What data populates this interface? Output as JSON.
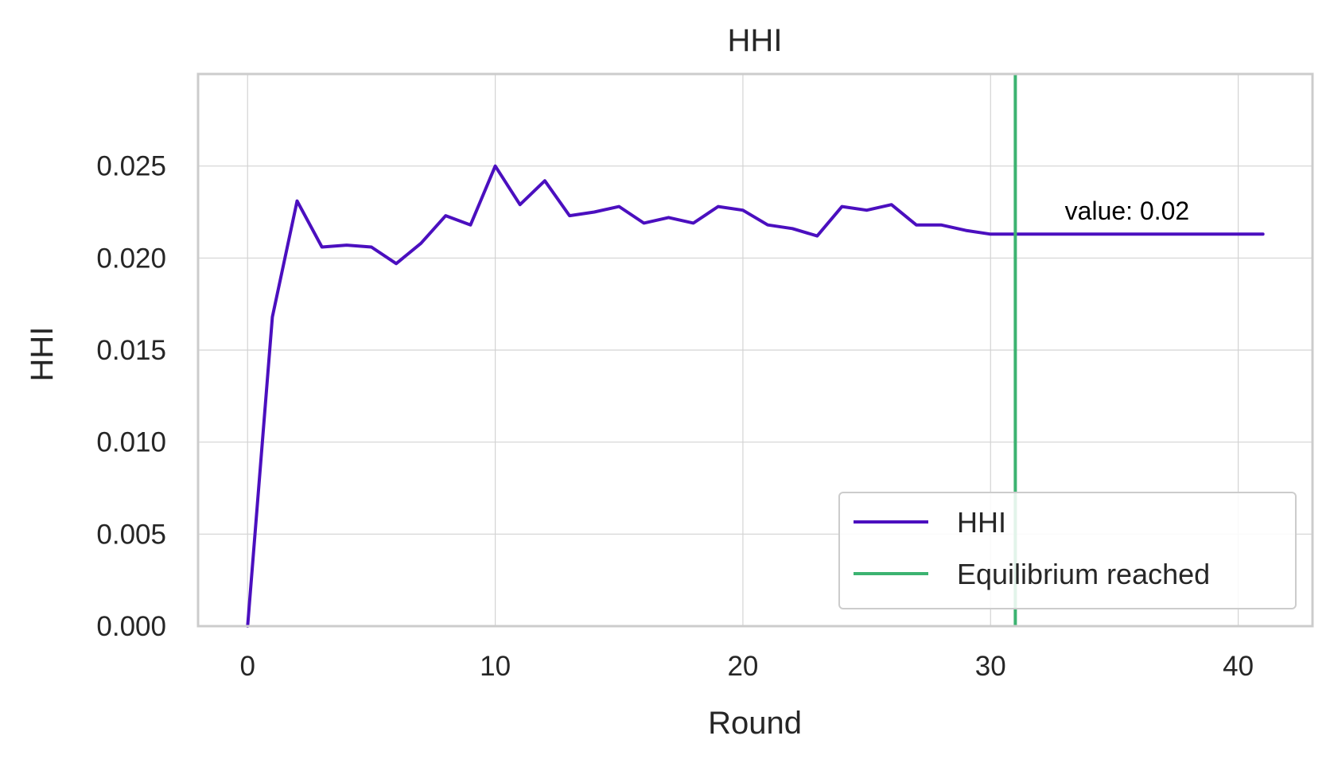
{
  "chart_data": {
    "type": "line",
    "title": "HHI",
    "xlabel": "Round",
    "ylabel": "HHI",
    "xlim": [
      -2,
      43
    ],
    "ylim": [
      0,
      0.03
    ],
    "xticks": [
      0,
      10,
      20,
      30,
      40
    ],
    "xtick_labels": [
      "0",
      "10",
      "20",
      "30",
      "40"
    ],
    "yticks": [
      0,
      0.005,
      0.01,
      0.015,
      0.02,
      0.025
    ],
    "ytick_labels": [
      "0.000",
      "0.005",
      "0.010",
      "0.015",
      "0.020",
      "0.025"
    ],
    "grid": true,
    "legend_position": "lower-right",
    "series": [
      {
        "name": "HHI",
        "color": "#4b0fbf",
        "x": [
          0,
          1,
          2,
          3,
          4,
          5,
          6,
          7,
          8,
          9,
          10,
          11,
          12,
          13,
          14,
          15,
          16,
          17,
          18,
          19,
          20,
          21,
          22,
          23,
          24,
          25,
          26,
          27,
          28,
          29,
          30,
          31,
          32,
          33,
          34,
          35,
          36,
          37,
          38,
          39,
          40,
          41
        ],
        "values": [
          0.0,
          0.0168,
          0.0231,
          0.0206,
          0.0207,
          0.0206,
          0.0197,
          0.0208,
          0.0223,
          0.0218,
          0.025,
          0.0229,
          0.0242,
          0.0223,
          0.0225,
          0.0228,
          0.0219,
          0.0222,
          0.0219,
          0.0228,
          0.0226,
          0.0218,
          0.0216,
          0.0212,
          0.0228,
          0.0226,
          0.0229,
          0.0218,
          0.0218,
          0.0215,
          0.0213,
          0.0213,
          0.0213,
          0.0213,
          0.0213,
          0.0213,
          0.0213,
          0.0213,
          0.0213,
          0.0213,
          0.0213,
          0.0213
        ]
      }
    ],
    "vlines": [
      {
        "name": "Equilibrium reached",
        "x": 31,
        "color": "#3cb371"
      }
    ],
    "annotations": [
      {
        "text": "value: 0.02",
        "x": 33,
        "y": 0.0221
      }
    ]
  }
}
